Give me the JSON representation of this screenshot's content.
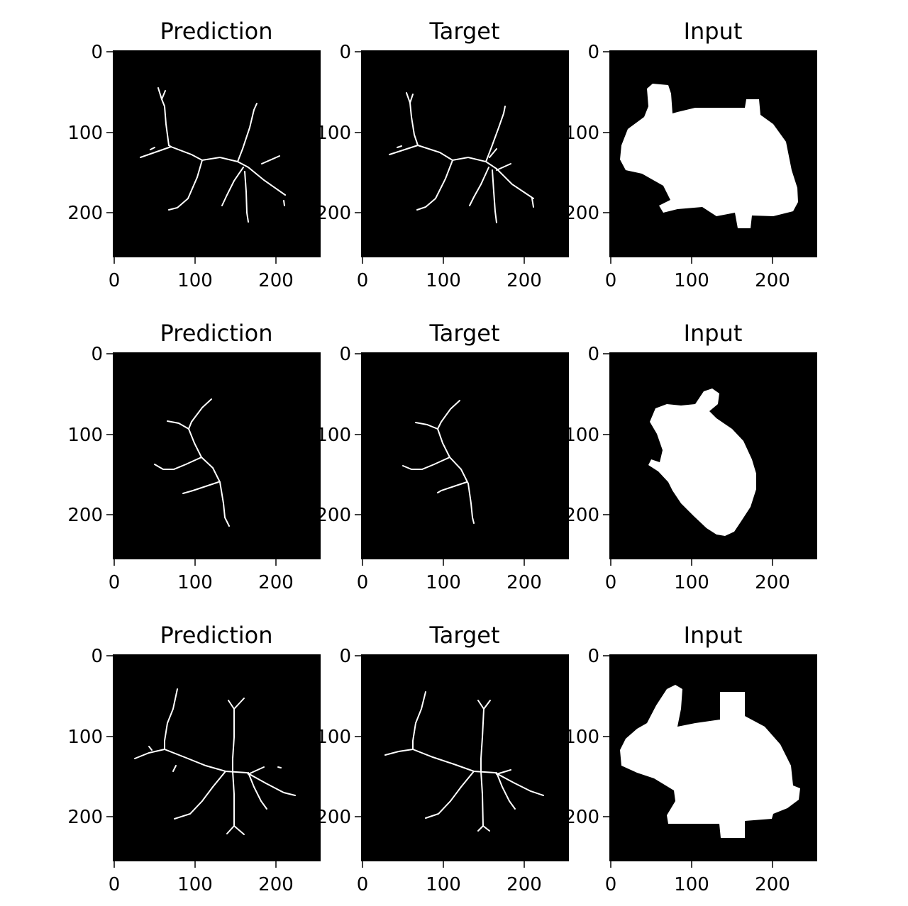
{
  "figure": {
    "grid": {
      "rows": 3,
      "cols": 3
    },
    "axis_ticks": [
      "0",
      "100",
      "200"
    ],
    "axis_range": [
      0,
      256
    ],
    "panels": [
      {
        "title": "Prediction",
        "kind": "skeleton",
        "content": "white skeleton lines on black"
      },
      {
        "title": "Target",
        "kind": "skeleton",
        "content": "white skeleton lines on black"
      },
      {
        "title": "Input",
        "kind": "mask",
        "content": "white bunny silhouette on black"
      },
      {
        "title": "Prediction",
        "kind": "skeleton",
        "content": "white skeleton lines on black"
      },
      {
        "title": "Target",
        "kind": "skeleton",
        "content": "white skeleton lines on black"
      },
      {
        "title": "Input",
        "kind": "mask",
        "content": "white bunny silhouette on black"
      },
      {
        "title": "Prediction",
        "kind": "skeleton",
        "content": "white skeleton lines on black"
      },
      {
        "title": "Target",
        "kind": "skeleton",
        "content": "white skeleton lines on black"
      },
      {
        "title": "Input",
        "kind": "mask",
        "content": "white bunny silhouette on black"
      }
    ],
    "colors": {
      "background": "#000000",
      "foreground": "#ffffff",
      "text": "#000000"
    }
  }
}
